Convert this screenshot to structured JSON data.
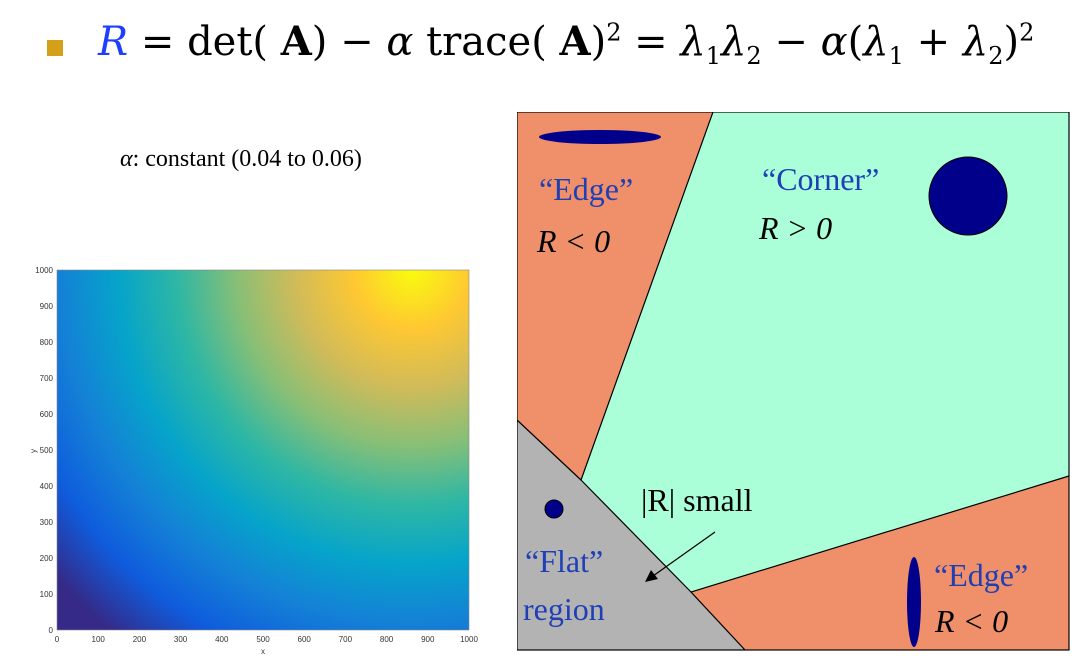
{
  "formula": {
    "lhs": "R",
    "eq1": " = det( ",
    "A1": "A",
    "minus1": ") − ",
    "alpha": "α",
    "trace": " trace( ",
    "A2": "A",
    "close2": ")",
    "sq1": "2",
    "eq2": " = ",
    "l1": "λ",
    "s1": "1",
    "l2": "λ",
    "s2": "2",
    "minus2": " − ",
    "alpha2": "α",
    "open3": "(",
    "l3": "λ",
    "s3": "1",
    "plus": " + ",
    "l4": "λ",
    "s4": "2",
    "close3": ")",
    "sq2": "2"
  },
  "alpha_note": {
    "symbol": "α",
    "text": ": constant (0.04 to 0.06)"
  },
  "chart_data": {
    "type": "heatmap",
    "xlabel": "x",
    "ylabel": "y",
    "xlim": [
      0,
      1000
    ],
    "ylim": [
      0,
      1000
    ],
    "x_ticks": [
      "0",
      "100",
      "200",
      "300",
      "400",
      "500",
      "600",
      "700",
      "800",
      "900",
      "1000"
    ],
    "y_ticks": [
      "0",
      "100",
      "200",
      "300",
      "400",
      "500",
      "600",
      "700",
      "800",
      "900",
      "1000"
    ],
    "colormap": "parula",
    "colors": [
      "#352a87",
      "#0f5cdd",
      "#1481d6",
      "#06a4ca",
      "#2eb7a4",
      "#87bf77",
      "#d1bb59",
      "#fec832",
      "#f9fb0e"
    ]
  },
  "diagram": {
    "colors": {
      "edge": "#f0906a",
      "corner": "#aaffd8",
      "flat": "#b3b3b3",
      "blob": "#00008b",
      "label_blue": "#1f3fb5"
    },
    "edge_top": {
      "name": "“Edge”",
      "cond": "R < 0"
    },
    "corner": {
      "name": "“Corner”",
      "cond": "R > 0"
    },
    "small": {
      "text": "|R| small"
    },
    "flat": {
      "name": "“Flat”",
      "sub": "region"
    },
    "edge_bottom": {
      "name": "“Edge”",
      "cond": "R < 0"
    }
  }
}
